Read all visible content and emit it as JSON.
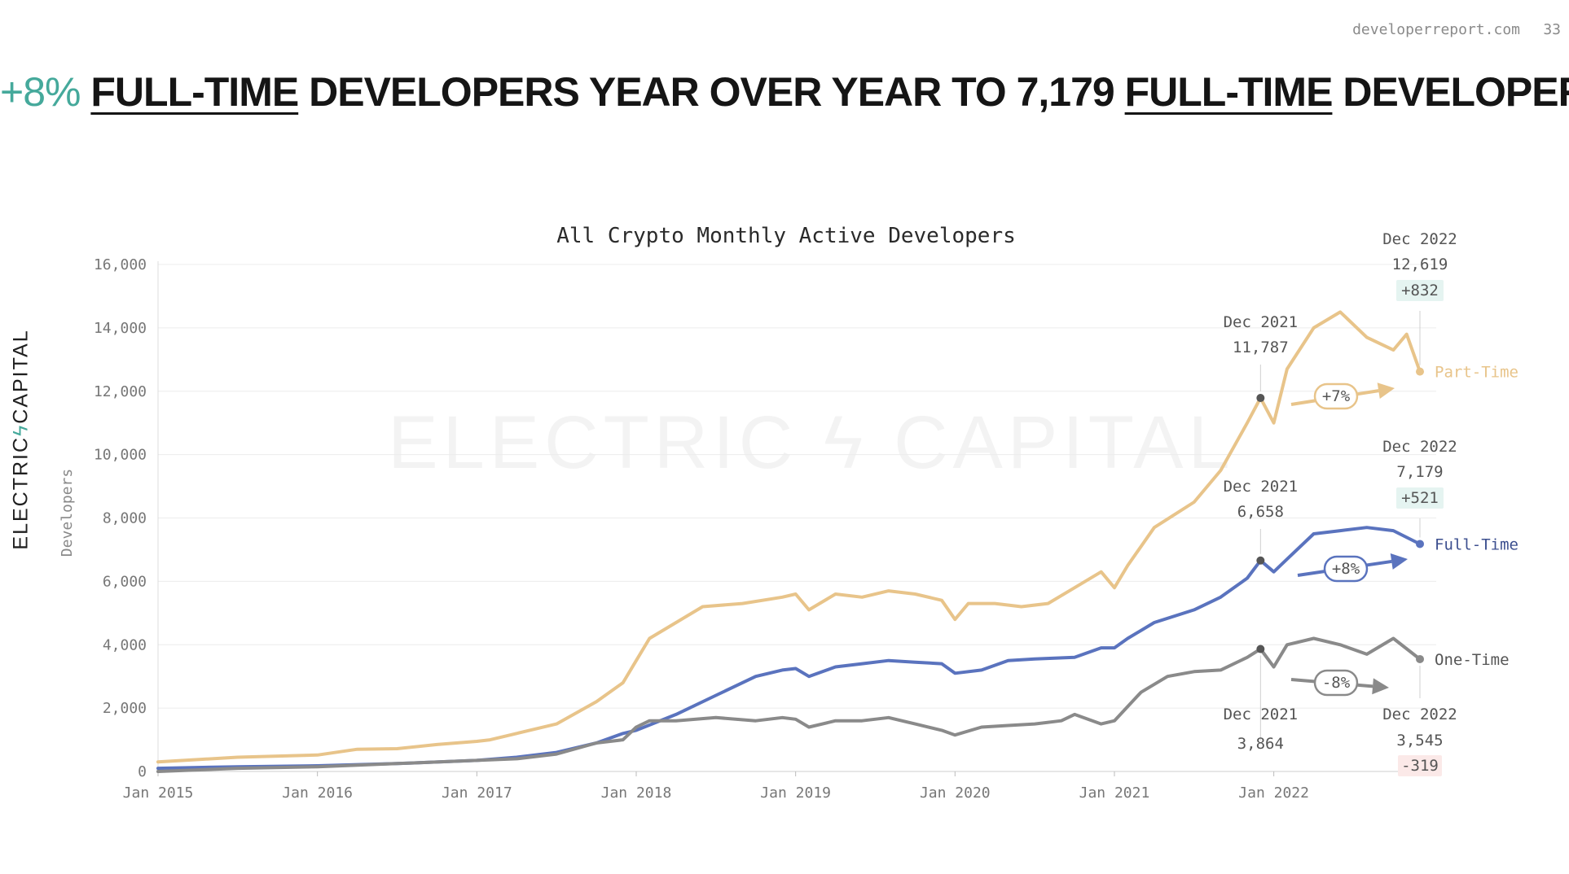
{
  "page": {
    "site": "developerreport.com",
    "page_number": "33"
  },
  "headline": {
    "pct": "+8%",
    "ft1": "FULL-TIME",
    "mid": "DEVELOPERS YEAR OVER YEAR TO 7,179",
    "ft2": "FULL-TIME",
    "end": "DEVELOPERS"
  },
  "brand": {
    "left": "ELECTRIC",
    "bolt": "ϟ",
    "right": "CAPITAL"
  },
  "watermark": "ELECTRIC ϟ CAPITAL",
  "colors": {
    "part_time": "#E8C48A",
    "full_time": "#5A73BE",
    "one_time": "#8A8A8A",
    "accent": "#45A99B",
    "negative": "#D9736E"
  },
  "chart_data": {
    "type": "line",
    "title": "All Crypto Monthly Active Developers",
    "ylabel": "Developers",
    "xlabel": "",
    "ylim": [
      0,
      16000
    ],
    "xlim": [
      "2015-01",
      "2022-12"
    ],
    "grid": true,
    "y_ticks": [
      "0",
      "2,000",
      "4,000",
      "6,000",
      "8,000",
      "10,000",
      "12,000",
      "14,000",
      "16,000"
    ],
    "x_ticks": [
      "Jan 2015",
      "Jan 2016",
      "Jan 2017",
      "Jan 2018",
      "Jan 2019",
      "Jan 2020",
      "Jan 2021",
      "Jan 2022"
    ],
    "series": [
      {
        "name": "Part-Time",
        "color": "#E8C48A",
        "points": [
          [
            "2015-01",
            300
          ],
          [
            "2015-07",
            450
          ],
          [
            "2016-01",
            520
          ],
          [
            "2016-04",
            700
          ],
          [
            "2016-07",
            720
          ],
          [
            "2016-10",
            850
          ],
          [
            "2017-01",
            950
          ],
          [
            "2017-02",
            1000
          ],
          [
            "2017-04",
            1200
          ],
          [
            "2017-07",
            1500
          ],
          [
            "2017-10",
            2200
          ],
          [
            "2017-12",
            2800
          ],
          [
            "2018-01",
            3500
          ],
          [
            "2018-02",
            4200
          ],
          [
            "2018-04",
            4700
          ],
          [
            "2018-06",
            5200
          ],
          [
            "2018-09",
            5300
          ],
          [
            "2018-12",
            5500
          ],
          [
            "2019-01",
            5600
          ],
          [
            "2019-02",
            5100
          ],
          [
            "2019-04",
            5600
          ],
          [
            "2019-06",
            5500
          ],
          [
            "2019-08",
            5700
          ],
          [
            "2019-10",
            5600
          ],
          [
            "2019-12",
            5400
          ],
          [
            "2020-01",
            4800
          ],
          [
            "2020-02",
            5300
          ],
          [
            "2020-04",
            5300
          ],
          [
            "2020-06",
            5200
          ],
          [
            "2020-08",
            5300
          ],
          [
            "2020-10",
            5800
          ],
          [
            "2020-12",
            6300
          ],
          [
            "2021-01",
            5800
          ],
          [
            "2021-02",
            6500
          ],
          [
            "2021-04",
            7700
          ],
          [
            "2021-07",
            8500
          ],
          [
            "2021-09",
            9500
          ],
          [
            "2021-11",
            11000
          ],
          [
            "2021-12",
            11787
          ],
          [
            "2022-01",
            11000
          ],
          [
            "2022-02",
            12700
          ],
          [
            "2022-04",
            14000
          ],
          [
            "2022-06",
            14500
          ],
          [
            "2022-08",
            13700
          ],
          [
            "2022-10",
            13300
          ],
          [
            "2022-11",
            13800
          ],
          [
            "2022-12",
            12619
          ]
        ],
        "end_label": "Dec 2022",
        "end_value": "12,619",
        "end_change": "+832",
        "prev_label": "Dec 2021",
        "prev_value": "11,787",
        "pct_change": "+7%"
      },
      {
        "name": "Full-Time",
        "color": "#5A73BE",
        "points": [
          [
            "2015-01",
            100
          ],
          [
            "2015-07",
            150
          ],
          [
            "2016-01",
            180
          ],
          [
            "2016-07",
            250
          ],
          [
            "2017-01",
            350
          ],
          [
            "2017-04",
            450
          ],
          [
            "2017-07",
            600
          ],
          [
            "2017-10",
            900
          ],
          [
            "2017-12",
            1200
          ],
          [
            "2018-01",
            1300
          ],
          [
            "2018-04",
            1800
          ],
          [
            "2018-07",
            2400
          ],
          [
            "2018-10",
            3000
          ],
          [
            "2018-12",
            3200
          ],
          [
            "2019-01",
            3250
          ],
          [
            "2019-02",
            3000
          ],
          [
            "2019-04",
            3300
          ],
          [
            "2019-06",
            3400
          ],
          [
            "2019-08",
            3500
          ],
          [
            "2019-10",
            3450
          ],
          [
            "2019-12",
            3400
          ],
          [
            "2020-01",
            3100
          ],
          [
            "2020-03",
            3200
          ],
          [
            "2020-05",
            3500
          ],
          [
            "2020-07",
            3550
          ],
          [
            "2020-10",
            3600
          ],
          [
            "2020-12",
            3900
          ],
          [
            "2021-01",
            3900
          ],
          [
            "2021-02",
            4200
          ],
          [
            "2021-04",
            4700
          ],
          [
            "2021-07",
            5100
          ],
          [
            "2021-09",
            5500
          ],
          [
            "2021-11",
            6100
          ],
          [
            "2021-12",
            6658
          ],
          [
            "2022-01",
            6300
          ],
          [
            "2022-02",
            6700
          ],
          [
            "2022-04",
            7500
          ],
          [
            "2022-06",
            7600
          ],
          [
            "2022-08",
            7700
          ],
          [
            "2022-10",
            7600
          ],
          [
            "2022-12",
            7179
          ]
        ],
        "end_label": "Dec 2022",
        "end_value": "7,179",
        "end_change": "+521",
        "prev_label": "Dec 2021",
        "prev_value": "6,658",
        "pct_change": "+8%"
      },
      {
        "name": "One-Time",
        "color": "#8A8A8A",
        "points": [
          [
            "2015-01",
            0
          ],
          [
            "2015-07",
            100
          ],
          [
            "2016-01",
            150
          ],
          [
            "2016-07",
            250
          ],
          [
            "2017-01",
            350
          ],
          [
            "2017-04",
            400
          ],
          [
            "2017-07",
            550
          ],
          [
            "2017-10",
            900
          ],
          [
            "2017-12",
            1000
          ],
          [
            "2018-01",
            1400
          ],
          [
            "2018-02",
            1600
          ],
          [
            "2018-04",
            1600
          ],
          [
            "2018-07",
            1700
          ],
          [
            "2018-10",
            1600
          ],
          [
            "2018-12",
            1700
          ],
          [
            "2019-01",
            1650
          ],
          [
            "2019-02",
            1400
          ],
          [
            "2019-04",
            1600
          ],
          [
            "2019-06",
            1600
          ],
          [
            "2019-08",
            1700
          ],
          [
            "2019-10",
            1500
          ],
          [
            "2019-12",
            1300
          ],
          [
            "2020-01",
            1150
          ],
          [
            "2020-03",
            1400
          ],
          [
            "2020-05",
            1450
          ],
          [
            "2020-07",
            1500
          ],
          [
            "2020-09",
            1600
          ],
          [
            "2020-10",
            1800
          ],
          [
            "2020-12",
            1500
          ],
          [
            "2021-01",
            1600
          ],
          [
            "2021-03",
            2500
          ],
          [
            "2021-05",
            3000
          ],
          [
            "2021-07",
            3150
          ],
          [
            "2021-09",
            3200
          ],
          [
            "2021-11",
            3600
          ],
          [
            "2021-12",
            3864
          ],
          [
            "2022-01",
            3300
          ],
          [
            "2022-02",
            4000
          ],
          [
            "2022-04",
            4200
          ],
          [
            "2022-06",
            4000
          ],
          [
            "2022-08",
            3700
          ],
          [
            "2022-10",
            4200
          ],
          [
            "2022-12",
            3545
          ]
        ],
        "end_label": "Dec 2022",
        "end_value": "3,545",
        "end_change": "-319",
        "prev_label": "Dec 2021",
        "prev_value": "3,864",
        "pct_change": "-8%"
      }
    ]
  }
}
